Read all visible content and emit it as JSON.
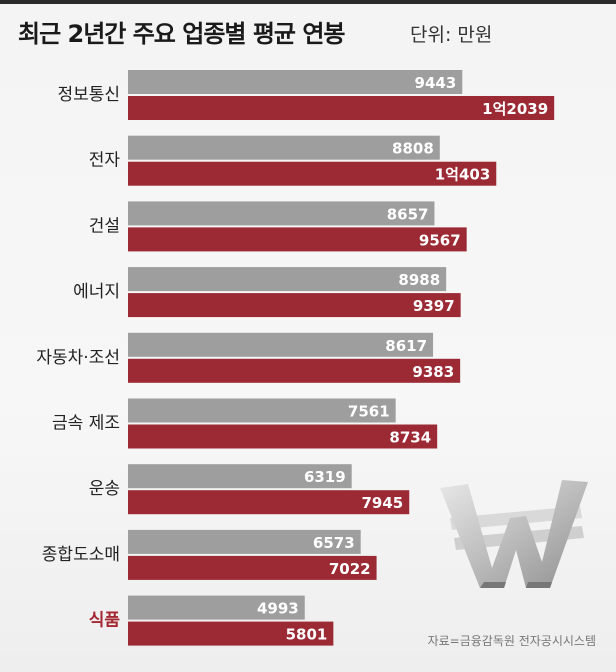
{
  "title": "최근 2년간 주요 업종별 평균 연봉",
  "unit": "단위: 만원",
  "source": "자료=금융감독원 전자공시시스템",
  "colors": {
    "series_prev": "#9e9e9e",
    "series_curr": "#9c2a35",
    "highlight_category": "#a32832",
    "category_text": "#222222"
  },
  "chart_data": {
    "type": "bar",
    "orientation": "horizontal",
    "categories": [
      "정보통신",
      "전자",
      "건설",
      "에너지",
      "자동차·조선",
      "금속 제조",
      "운송",
      "종합도소매",
      "식품"
    ],
    "highlighted_category": "식품",
    "series": [
      {
        "color": "#9e9e9e",
        "values": [
          9443,
          8808,
          8657,
          8988,
          8617,
          7561,
          6319,
          6573,
          4993
        ],
        "labels": [
          "9443",
          "8808",
          "8657",
          "8988",
          "8617",
          "7561",
          "6319",
          "6573",
          "4993"
        ]
      },
      {
        "color": "#9c2a35",
        "values": [
          12039,
          10403,
          9567,
          9397,
          9383,
          8734,
          7945,
          7022,
          5801
        ],
        "labels": [
          "1억2039",
          "1억403",
          "9567",
          "9397",
          "9383",
          "8734",
          "7945",
          "7022",
          "5801"
        ]
      }
    ],
    "grid": false,
    "legend": "none"
  }
}
